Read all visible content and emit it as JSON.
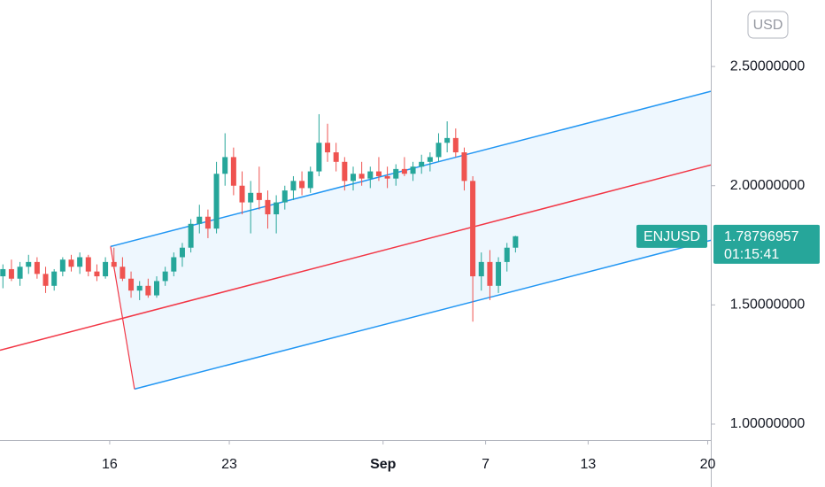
{
  "chart_data": {
    "type": "candlestick",
    "symbol": "ENJUSD",
    "currency": "USD",
    "last_price": 1.78796957,
    "countdown": "01:15:41",
    "up_color": "#26a69a",
    "down_color": "#ef5350",
    "x": [
      9.75,
      10.25,
      10.75,
      11.25,
      11.75,
      12.25,
      12.75,
      13.25,
      13.75,
      14.25,
      14.75,
      15.25,
      15.75,
      16.25,
      16.75,
      17.25,
      17.75,
      18.25,
      18.75,
      19.25,
      19.75,
      20.25,
      20.75,
      21.25,
      21.75,
      22.25,
      22.75,
      23.25,
      23.75,
      24.25,
      24.75,
      25.25,
      25.75,
      26.25,
      26.75,
      27.25,
      27.75,
      28.25,
      28.75,
      29.25,
      29.75,
      30.25,
      30.75,
      31.25,
      31.75,
      32.25,
      32.75,
      33.25,
      33.75,
      34.25,
      34.75,
      35.25,
      35.75,
      36.25,
      36.75,
      37.25,
      37.75,
      38.25,
      38.75,
      39.25,
      39.75
    ],
    "open": [
      1.62,
      1.65,
      1.61,
      1.66,
      1.68,
      1.63,
      1.58,
      1.64,
      1.69,
      1.66,
      1.7,
      1.64,
      1.62,
      1.68,
      1.66,
      1.61,
      1.56,
      1.58,
      1.54,
      1.6,
      1.64,
      1.7,
      1.74,
      1.84,
      1.87,
      1.82,
      2.05,
      2.12,
      2.0,
      1.93,
      1.97,
      1.94,
      1.88,
      1.93,
      1.98,
      2.02,
      1.99,
      2.06,
      2.18,
      2.14,
      2.1,
      2.02,
      2.05,
      2.03,
      2.06,
      2.04,
      2.03,
      2.07,
      2.05,
      2.08,
      2.1,
      2.12,
      2.18,
      2.2,
      2.14,
      2.02,
      1.62,
      1.68,
      1.58,
      1.68,
      1.74
    ],
    "high": [
      1.67,
      1.69,
      1.68,
      1.71,
      1.7,
      1.66,
      1.65,
      1.7,
      1.71,
      1.72,
      1.71,
      1.67,
      1.7,
      1.74,
      1.7,
      1.64,
      1.6,
      1.61,
      1.62,
      1.66,
      1.72,
      1.76,
      1.86,
      1.92,
      1.9,
      2.1,
      2.22,
      2.16,
      2.06,
      2.02,
      2.08,
      1.98,
      1.96,
      2.0,
      2.04,
      2.06,
      2.08,
      2.3,
      2.26,
      2.18,
      2.12,
      2.08,
      2.1,
      2.08,
      2.12,
      2.08,
      2.09,
      2.12,
      2.1,
      2.13,
      2.14,
      2.22,
      2.27,
      2.24,
      2.16,
      2.04,
      1.72,
      1.73,
      1.7,
      1.76,
      1.79
    ],
    "low": [
      1.57,
      1.6,
      1.58,
      1.63,
      1.61,
      1.55,
      1.56,
      1.62,
      1.64,
      1.63,
      1.62,
      1.6,
      1.61,
      1.65,
      1.6,
      1.53,
      1.52,
      1.53,
      1.53,
      1.58,
      1.62,
      1.66,
      1.72,
      1.8,
      1.78,
      1.8,
      2.0,
      1.96,
      1.88,
      1.8,
      1.9,
      1.82,
      1.8,
      1.9,
      1.94,
      1.96,
      1.97,
      2.04,
      2.1,
      2.06,
      1.98,
      1.98,
      2.0,
      1.99,
      2.02,
      1.99,
      2.0,
      2.04,
      2.02,
      2.05,
      2.06,
      2.1,
      2.14,
      2.12,
      1.98,
      1.43,
      1.56,
      1.52,
      1.55,
      1.64,
      1.72
    ],
    "close": [
      1.65,
      1.61,
      1.66,
      1.68,
      1.63,
      1.58,
      1.64,
      1.69,
      1.66,
      1.7,
      1.64,
      1.62,
      1.68,
      1.66,
      1.61,
      1.56,
      1.58,
      1.54,
      1.6,
      1.64,
      1.7,
      1.74,
      1.84,
      1.87,
      1.82,
      2.05,
      2.12,
      2.0,
      1.93,
      1.97,
      1.94,
      1.88,
      1.93,
      1.98,
      2.02,
      1.99,
      2.06,
      2.18,
      2.14,
      2.1,
      2.02,
      2.05,
      2.03,
      2.06,
      2.04,
      2.03,
      2.07,
      2.05,
      2.08,
      2.1,
      2.12,
      2.18,
      2.2,
      2.14,
      2.02,
      1.62,
      1.68,
      1.58,
      1.68,
      1.74,
      1.788
    ],
    "xlim": [
      9.58,
      51.18
    ],
    "xticks": [
      {
        "value": 16,
        "label": "16"
      },
      {
        "value": 23,
        "label": "23"
      },
      {
        "value": 32,
        "label": "Sep"
      },
      {
        "value": 38,
        "label": "7"
      },
      {
        "value": 44,
        "label": "13"
      },
      {
        "value": 51,
        "label": "20"
      }
    ],
    "ylim": [
      0.933,
      2.779
    ],
    "yticks": [
      {
        "value": 1.0,
        "label": "1.00000000"
      },
      {
        "value": 1.5,
        "label": "1.50000000"
      },
      {
        "value": 2.0,
        "label": "2.00000000"
      },
      {
        "value": 2.5,
        "label": "2.50000000"
      }
    ],
    "channel": {
      "upper": [
        [
          16.05,
          1.745
        ],
        [
          51.18,
          2.396
        ]
      ],
      "middle": [
        [
          9.58,
          1.31
        ],
        [
          51.18,
          2.087
        ]
      ],
      "lower": [
        [
          17.45,
          1.147
        ],
        [
          51.18,
          1.771
        ]
      ],
      "upper_color": "#2196f3",
      "middle_color": "#f23645",
      "lower_color": "#2196f3"
    }
  }
}
